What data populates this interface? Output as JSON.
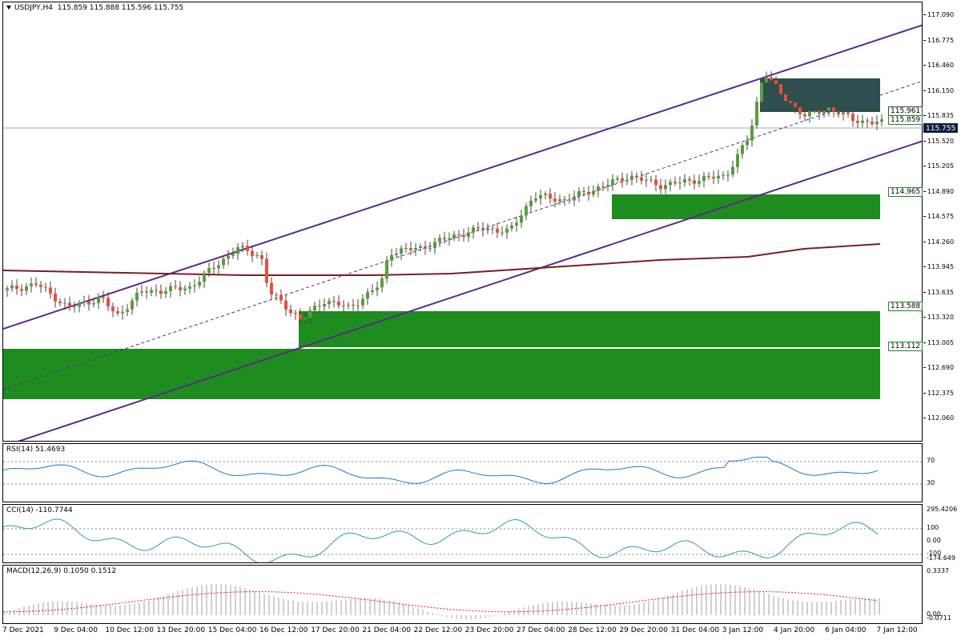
{
  "header": {
    "symbol": "USDJPY,H4",
    "ohlc": "115.859 115.888 115.596 115.755",
    "menu_icon": "triangle-down-icon"
  },
  "price_axis": [
    "117.090",
    "116.775",
    "116.460",
    "116.150",
    "115.835",
    "115.520",
    "115.205",
    "114.890",
    "114.575",
    "114.260",
    "113.945",
    "113.635",
    "113.320",
    "113.005",
    "112.690",
    "112.375",
    "112.060"
  ],
  "current_price": "115.755",
  "levels": [
    {
      "label": "115.961",
      "color": "#2f4f4f"
    },
    {
      "label": "115.859",
      "color": "#1e8c1e"
    },
    {
      "label": "114.965",
      "color": "#1e8c1e"
    },
    {
      "label": "113.588",
      "color": "#1e8c1e"
    },
    {
      "label": "113.112",
      "color": "#1e8c1e"
    }
  ],
  "indicators": {
    "rsi": {
      "title": "RSI(14) 51.4693",
      "axis": [
        "70",
        "30"
      ]
    },
    "cci": {
      "title": "CCI(14) -110.7744",
      "axis": [
        "295.4206",
        "100",
        "0.00",
        "-100",
        "-174.649"
      ]
    },
    "macd": {
      "title": "MACD(12,26,9) 0.1050 0.1512",
      "axis": [
        "0.3337",
        "0.00",
        "-0.0711"
      ]
    }
  },
  "time_axis": [
    "7 Dec 2021",
    "9 Dec 04:00",
    "10 Dec 12:00",
    "13 Dec 20:00",
    "15 Dec 04:00",
    "16 Dec 12:00",
    "17 Dec 20:00",
    "21 Dec 04:00",
    "22 Dec 12:00",
    "23 Dec 20:00",
    "27 Dec 04:00",
    "28 Dec 12:00",
    "29 Dec 20:00",
    "31 Dec 04:00",
    "3 Jan 12:00",
    "4 Jan 20:00",
    "6 Jan 04:00",
    "7 Jan 12:00"
  ],
  "colors": {
    "bull": "#5a9e3a",
    "bear": "#e8503a",
    "channel": "#5b2a8f",
    "ma": "#7a1f1f",
    "zone": "#1e8c1e",
    "supply": "#2f4f4f",
    "indicator_line": "#1f77c8",
    "signal": "#d62020",
    "grid": "#888888"
  }
}
